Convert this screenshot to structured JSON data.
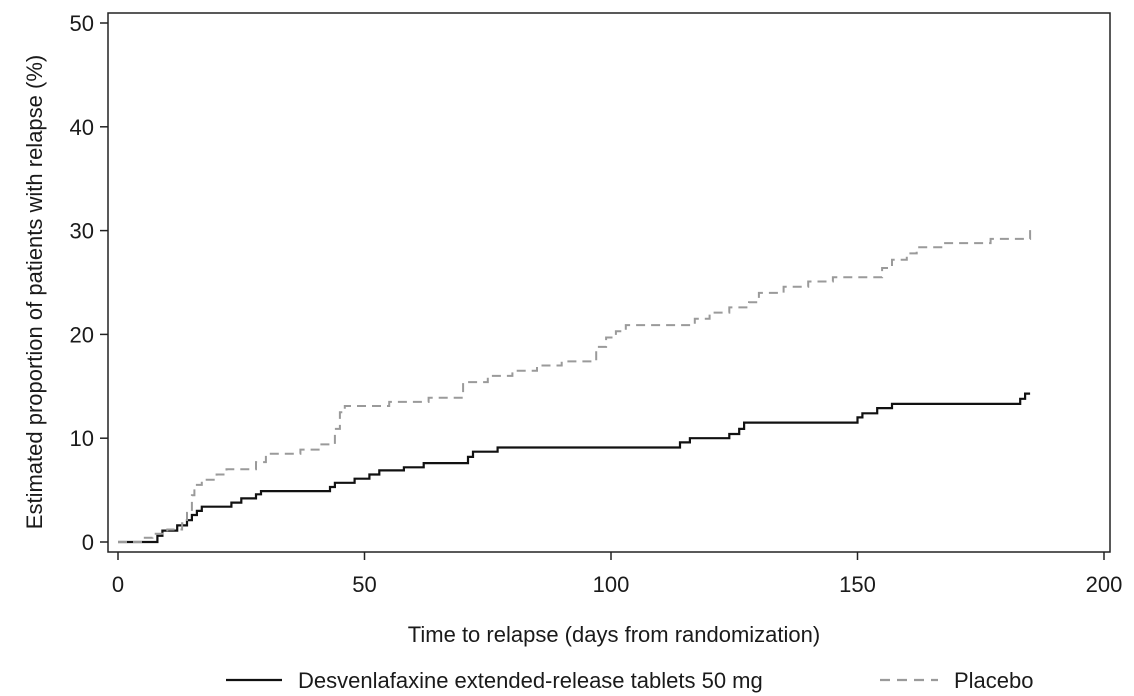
{
  "chart_data": {
    "type": "line",
    "step": true,
    "xlabel": "Time to relapse (days from randomization)",
    "ylabel": "Estimated proportion of patients with relapse (%)",
    "xlim": [
      0,
      200
    ],
    "ylim": [
      0,
      50
    ],
    "xticks": [
      0,
      50,
      100,
      150,
      200
    ],
    "yticks": [
      0,
      10,
      20,
      30,
      40,
      50
    ],
    "grid": false,
    "legend_position": "bottom",
    "series": [
      {
        "name": "Desvenlafaxine extended-release tablets 50 mg",
        "color": "#111111",
        "dash": "solid",
        "points": [
          [
            0,
            0
          ],
          [
            8,
            0
          ],
          [
            8,
            0.6
          ],
          [
            9,
            0.6
          ],
          [
            9,
            1.1
          ],
          [
            12,
            1.1
          ],
          [
            12,
            1.6
          ],
          [
            14,
            1.6
          ],
          [
            14,
            2.1
          ],
          [
            15,
            2.1
          ],
          [
            15,
            2.6
          ],
          [
            16,
            2.6
          ],
          [
            16,
            3.0
          ],
          [
            17,
            3.0
          ],
          [
            17,
            3.4
          ],
          [
            23,
            3.4
          ],
          [
            23,
            3.8
          ],
          [
            25,
            3.8
          ],
          [
            25,
            4.2
          ],
          [
            28,
            4.2
          ],
          [
            28,
            4.6
          ],
          [
            29,
            4.6
          ],
          [
            29,
            4.9
          ],
          [
            43,
            4.9
          ],
          [
            43,
            5.3
          ],
          [
            44,
            5.3
          ],
          [
            44,
            5.7
          ],
          [
            48,
            5.7
          ],
          [
            48,
            6.1
          ],
          [
            51,
            6.1
          ],
          [
            51,
            6.5
          ],
          [
            53,
            6.5
          ],
          [
            53,
            6.9
          ],
          [
            58,
            6.9
          ],
          [
            58,
            7.2
          ],
          [
            62,
            7.2
          ],
          [
            62,
            7.6
          ],
          [
            71,
            7.6
          ],
          [
            71,
            8.2
          ],
          [
            72,
            8.2
          ],
          [
            72,
            8.7
          ],
          [
            77,
            8.7
          ],
          [
            77,
            9.1
          ],
          [
            114,
            9.1
          ],
          [
            114,
            9.6
          ],
          [
            116,
            9.6
          ],
          [
            116,
            10.0
          ],
          [
            124,
            10.0
          ],
          [
            124,
            10.4
          ],
          [
            126,
            10.4
          ],
          [
            126,
            10.9
          ],
          [
            127,
            10.9
          ],
          [
            127,
            11.5
          ],
          [
            150,
            11.5
          ],
          [
            150,
            12.0
          ],
          [
            151,
            12.0
          ],
          [
            151,
            12.4
          ],
          [
            154,
            12.4
          ],
          [
            154,
            12.9
          ],
          [
            157,
            12.9
          ],
          [
            157,
            13.3
          ],
          [
            183,
            13.3
          ],
          [
            183,
            13.8
          ],
          [
            184,
            13.8
          ],
          [
            184,
            14.3
          ],
          [
            185,
            14.3
          ]
        ]
      },
      {
        "name": "Placebo",
        "color": "#9a9a9a",
        "dash": "dashed",
        "points": [
          [
            0,
            0
          ],
          [
            5,
            0
          ],
          [
            5,
            0.4
          ],
          [
            7,
            0.4
          ],
          [
            7,
            0.8
          ],
          [
            10,
            0.8
          ],
          [
            10,
            1.2
          ],
          [
            13,
            1.2
          ],
          [
            13,
            1.8
          ],
          [
            14,
            1.8
          ],
          [
            14,
            2.8
          ],
          [
            15,
            2.8
          ],
          [
            15,
            4.5
          ],
          [
            15.5,
            4.5
          ],
          [
            15.5,
            5.5
          ],
          [
            17,
            5.5
          ],
          [
            17,
            6.0
          ],
          [
            20,
            6.0
          ],
          [
            20,
            6.5
          ],
          [
            22,
            6.5
          ],
          [
            22,
            7.0
          ],
          [
            28,
            7.0
          ],
          [
            28,
            7.7
          ],
          [
            30,
            7.7
          ],
          [
            30,
            8.5
          ],
          [
            37,
            8.5
          ],
          [
            37,
            8.9
          ],
          [
            41,
            8.9
          ],
          [
            41,
            9.4
          ],
          [
            44,
            9.4
          ],
          [
            44,
            10.9
          ],
          [
            45,
            10.9
          ],
          [
            45,
            12.5
          ],
          [
            46,
            12.5
          ],
          [
            46,
            13.1
          ],
          [
            55,
            13.1
          ],
          [
            55,
            13.5
          ],
          [
            63,
            13.5
          ],
          [
            63,
            13.9
          ],
          [
            70,
            13.9
          ],
          [
            70,
            15.4
          ],
          [
            75,
            15.4
          ],
          [
            75,
            16.0
          ],
          [
            80,
            16.0
          ],
          [
            80,
            16.5
          ],
          [
            85,
            16.5
          ],
          [
            85,
            17.0
          ],
          [
            90,
            17.0
          ],
          [
            90,
            17.4
          ],
          [
            97,
            17.4
          ],
          [
            97,
            18.8
          ],
          [
            99,
            18.8
          ],
          [
            99,
            19.7
          ],
          [
            101,
            19.7
          ],
          [
            101,
            20.3
          ],
          [
            103,
            20.3
          ],
          [
            103,
            20.9
          ],
          [
            117,
            20.9
          ],
          [
            117,
            21.5
          ],
          [
            120,
            21.5
          ],
          [
            120,
            22.1
          ],
          [
            124,
            22.1
          ],
          [
            124,
            22.6
          ],
          [
            128,
            22.6
          ],
          [
            128,
            23.1
          ],
          [
            130,
            23.1
          ],
          [
            130,
            24.0
          ],
          [
            135,
            24.0
          ],
          [
            135,
            24.6
          ],
          [
            140,
            24.6
          ],
          [
            140,
            25.1
          ],
          [
            145,
            25.1
          ],
          [
            145,
            25.5
          ],
          [
            155,
            25.5
          ],
          [
            155,
            26.4
          ],
          [
            157,
            26.4
          ],
          [
            157,
            27.2
          ],
          [
            160,
            27.2
          ],
          [
            160,
            27.8
          ],
          [
            162,
            27.8
          ],
          [
            162,
            28.4
          ],
          [
            167,
            28.4
          ],
          [
            167,
            28.8
          ],
          [
            177,
            28.8
          ],
          [
            177,
            29.2
          ],
          [
            185,
            29.2
          ],
          [
            185,
            30.3
          ]
        ]
      }
    ]
  }
}
